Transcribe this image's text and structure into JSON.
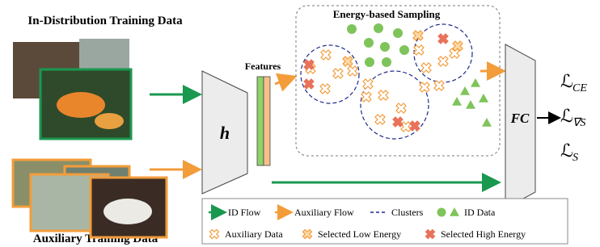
{
  "header": {
    "id_title": "In-Distribution Training Data",
    "aux_title": "Auxiliary Training Data"
  },
  "network": {
    "feature_extractor": "h",
    "features": "Features",
    "classifier": "FC"
  },
  "sampling": {
    "title": "Energy-based Sampling"
  },
  "losses": [
    {
      "main": "ℒ",
      "sub": "CE"
    },
    {
      "main": "ℒ",
      "sub": "∇S"
    },
    {
      "main": "ℒ",
      "sub": "S"
    }
  ],
  "legend": [
    "ID Flow",
    "Auxiliary Flow",
    "Clusters",
    "ID Data",
    "Auxiliary Data",
    "Selected Low Energy",
    "Selected High Energy"
  ]
}
